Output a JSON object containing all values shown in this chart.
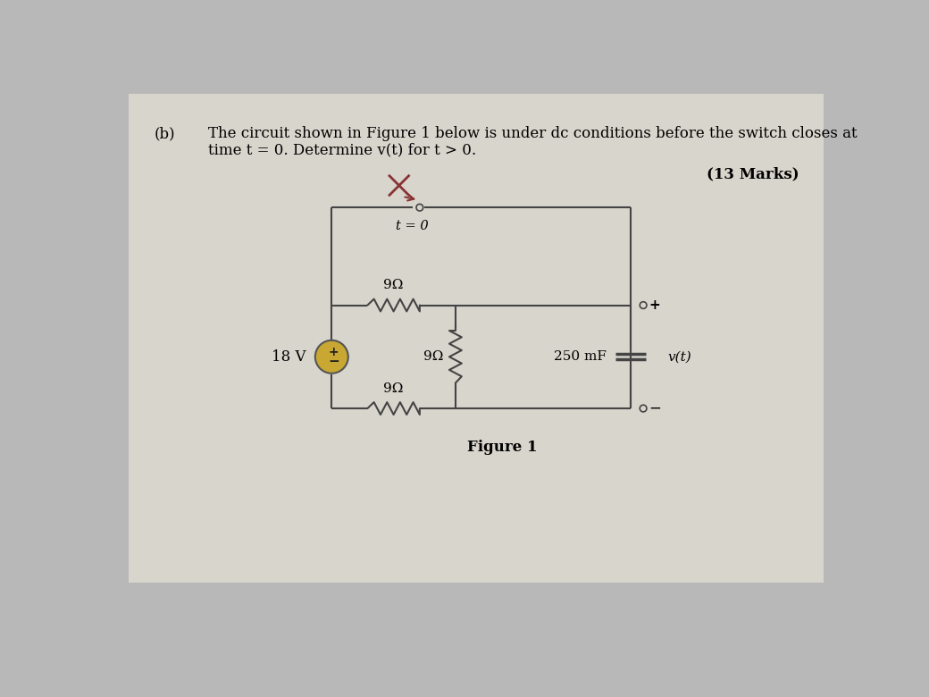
{
  "bg_color": "#b8b8b8",
  "panel_color": "#d8d5cc",
  "circuit_bg": "#e0ddd4",
  "text_b": "(b)",
  "text_problem_line1": "The circuit shown in Figure 1 below is under dc conditions before the switch closes at",
  "text_problem_line2": "time t = 0. Determine v(t) for t > 0.",
  "text_marks": "(13 Marks)",
  "text_figure": "Figure 1",
  "line_color": "#444444",
  "source_fill": "#c8a832",
  "source_edge": "#555555",
  "label_18V": "18 V",
  "label_9ohm": "9Ω",
  "label_250mF": "250 mF",
  "label_vt": "v(t)",
  "label_t0": "t = 0"
}
